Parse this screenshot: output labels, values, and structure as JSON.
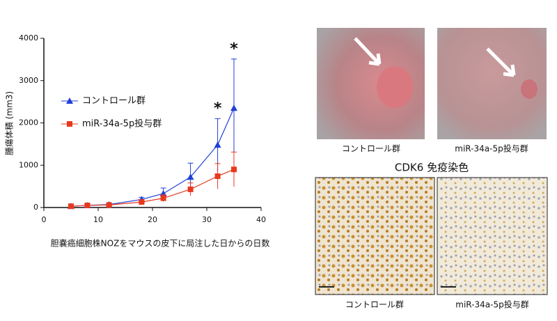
{
  "chart_data": {
    "type": "line",
    "x_label": "胆嚢癌細胞株NOZをマウスの皮下に局注した日からの日数",
    "y_label": "腫瘍体積 (mm3)",
    "xlim": [
      0,
      40
    ],
    "xticks": [
      0,
      10,
      20,
      30,
      40
    ],
    "ylim": [
      0,
      4000
    ],
    "yticks": [
      0,
      1000,
      2000,
      3000,
      4000
    ],
    "x": [
      5,
      8,
      12,
      18,
      22,
      27,
      32,
      35
    ],
    "series": [
      {
        "name": "コントロール群",
        "color": "#1f3fd6",
        "marker": "triangle",
        "values": [
          30,
          50,
          70,
          190,
          330,
          720,
          1480,
          2350
        ],
        "errors": [
          20,
          20,
          30,
          50,
          130,
          330,
          620,
          1160
        ]
      },
      {
        "name": "miR-34a-5p投与群",
        "color": "#e8391e",
        "marker": "square",
        "values": [
          30,
          50,
          60,
          130,
          220,
          430,
          740,
          900
        ],
        "errors": [
          20,
          20,
          20,
          50,
          80,
          150,
          300,
          410
        ]
      }
    ],
    "annotations": [
      {
        "text": "*",
        "x": 32
      },
      {
        "text": "*",
        "x": 35
      }
    ]
  },
  "photos": {
    "top_labels": [
      "コントロール群",
      "miR-34a-5p投与群"
    ],
    "title": "CDK6 免疫染色",
    "bottom_labels": [
      "コントロール群",
      "miR-34a-5p投与群"
    ]
  }
}
